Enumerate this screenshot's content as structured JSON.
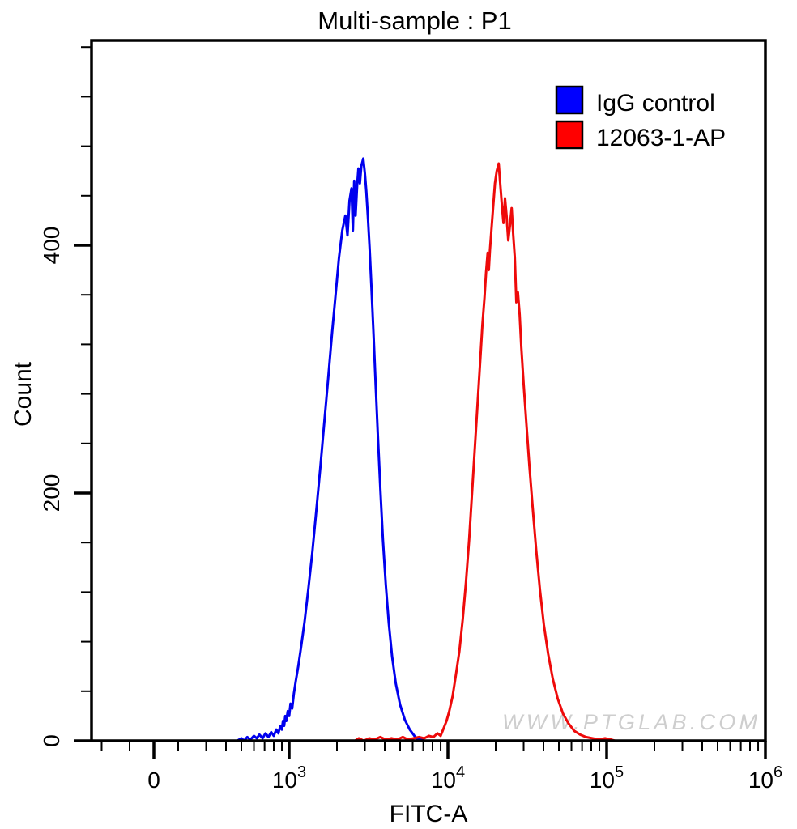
{
  "title": "Multi-sample : P1",
  "watermark": "WWW.PTGLAB.COM",
  "chart_data": {
    "type": "line",
    "subtype": "flow-cytometry-histogram",
    "title": "Multi-sample : P1",
    "xlabel": "FITC-A",
    "ylabel": "Count",
    "x_scale": "logicle",
    "x_major_ticks": [
      {
        "value": 0,
        "label": "0"
      },
      {
        "value": 1000,
        "base": "10",
        "exp": "3"
      },
      {
        "value": 10000,
        "base": "10",
        "exp": "4"
      },
      {
        "value": 100000,
        "base": "10",
        "exp": "5"
      },
      {
        "value": 1000000,
        "base": "10",
        "exp": "6"
      }
    ],
    "x_minor_tick_values": [
      -300,
      -200,
      200,
      300,
      400,
      500,
      600,
      700,
      800,
      900,
      2000,
      3000,
      4000,
      5000,
      6000,
      7000,
      8000,
      9000,
      20000,
      30000,
      40000,
      50000,
      60000,
      70000,
      80000,
      90000,
      200000,
      300000,
      400000,
      500000,
      600000,
      700000,
      800000,
      900000
    ],
    "y_major_ticks": [
      {
        "value": 0,
        "label": "0"
      },
      {
        "value": 200,
        "label": "200"
      },
      {
        "value": 400,
        "label": "400"
      }
    ],
    "y_minor_tick_values": [
      40,
      80,
      120,
      160,
      240,
      280,
      320,
      360,
      440,
      480,
      520,
      560
    ],
    "ylim": [
      0,
      565
    ],
    "grid": false,
    "legend": {
      "position": "top-right",
      "entries": [
        {
          "label": "IgG control",
          "color": "#0000ff"
        },
        {
          "label": "12063-1-AP",
          "color": "#ff0000"
        }
      ]
    },
    "series": [
      {
        "name": "IgG control",
        "color": "#0000ee",
        "points": [
          [
            470,
            0
          ],
          [
            500,
            2
          ],
          [
            520,
            0
          ],
          [
            545,
            3
          ],
          [
            570,
            1
          ],
          [
            600,
            4
          ],
          [
            625,
            2
          ],
          [
            650,
            5
          ],
          [
            680,
            2
          ],
          [
            710,
            6
          ],
          [
            740,
            3
          ],
          [
            770,
            7
          ],
          [
            800,
            4
          ],
          [
            830,
            9
          ],
          [
            855,
            6
          ],
          [
            880,
            12
          ],
          [
            900,
            9
          ],
          [
            915,
            16
          ],
          [
            930,
            12
          ],
          [
            945,
            20
          ],
          [
            960,
            16
          ],
          [
            980,
            24
          ],
          [
            1000,
            20
          ],
          [
            1020,
            30
          ],
          [
            1045,
            26
          ],
          [
            1070,
            38
          ],
          [
            1100,
            48
          ],
          [
            1140,
            60
          ],
          [
            1190,
            76
          ],
          [
            1250,
            96
          ],
          [
            1320,
            122
          ],
          [
            1400,
            152
          ],
          [
            1480,
            185
          ],
          [
            1570,
            220
          ],
          [
            1660,
            255
          ],
          [
            1760,
            292
          ],
          [
            1860,
            328
          ],
          [
            1960,
            360
          ],
          [
            2060,
            390
          ],
          [
            2160,
            412
          ],
          [
            2260,
            424
          ],
          [
            2330,
            408
          ],
          [
            2400,
            436
          ],
          [
            2470,
            446
          ],
          [
            2520,
            412
          ],
          [
            2570,
            452
          ],
          [
            2620,
            424
          ],
          [
            2680,
            448
          ],
          [
            2730,
            462
          ],
          [
            2790,
            450
          ],
          [
            2850,
            464
          ],
          [
            2930,
            470
          ],
          [
            3000,
            458
          ],
          [
            3060,
            444
          ],
          [
            3130,
            424
          ],
          [
            3210,
            398
          ],
          [
            3300,
            366
          ],
          [
            3400,
            328
          ],
          [
            3510,
            286
          ],
          [
            3630,
            244
          ],
          [
            3760,
            202
          ],
          [
            3900,
            162
          ],
          [
            4060,
            126
          ],
          [
            4240,
            95
          ],
          [
            4450,
            68
          ],
          [
            4700,
            46
          ],
          [
            5000,
            29
          ],
          [
            5350,
            17
          ],
          [
            5750,
            9
          ],
          [
            6150,
            4
          ],
          [
            6500,
            1
          ],
          [
            6800,
            2
          ],
          [
            7100,
            0
          ]
        ]
      },
      {
        "name": "12063-1-AP",
        "color": "#ee0a0a",
        "points": [
          [
            2600,
            0
          ],
          [
            2750,
            2
          ],
          [
            2950,
            0
          ],
          [
            3200,
            2
          ],
          [
            3450,
            1
          ],
          [
            3750,
            3
          ],
          [
            4050,
            1
          ],
          [
            4400,
            2
          ],
          [
            4800,
            1
          ],
          [
            5200,
            3
          ],
          [
            5600,
            1
          ],
          [
            6100,
            2
          ],
          [
            6600,
            3
          ],
          [
            7100,
            2
          ],
          [
            7600,
            4
          ],
          [
            8100,
            3
          ],
          [
            8600,
            6
          ],
          [
            9000,
            4
          ],
          [
            9400,
            10
          ],
          [
            9800,
            16
          ],
          [
            10200,
            24
          ],
          [
            10700,
            36
          ],
          [
            11200,
            52
          ],
          [
            11800,
            72
          ],
          [
            12400,
            98
          ],
          [
            13000,
            128
          ],
          [
            13600,
            162
          ],
          [
            14200,
            200
          ],
          [
            14800,
            238
          ],
          [
            15400,
            274
          ],
          [
            16000,
            308
          ],
          [
            16500,
            336
          ],
          [
            17000,
            358
          ],
          [
            17400,
            378
          ],
          [
            17800,
            394
          ],
          [
            18100,
            380
          ],
          [
            18400,
            396
          ],
          [
            18800,
            412
          ],
          [
            19300,
            432
          ],
          [
            19800,
            450
          ],
          [
            20300,
            460
          ],
          [
            20900,
            466
          ],
          [
            21400,
            448
          ],
          [
            21900,
            432
          ],
          [
            22400,
            418
          ],
          [
            22900,
            438
          ],
          [
            23400,
            424
          ],
          [
            24000,
            404
          ],
          [
            24600,
            416
          ],
          [
            25200,
            430
          ],
          [
            25800,
            408
          ],
          [
            26400,
            390
          ],
          [
            27000,
            354
          ],
          [
            27600,
            362
          ],
          [
            28300,
            344
          ],
          [
            29000,
            318
          ],
          [
            30000,
            288
          ],
          [
            31200,
            256
          ],
          [
            32600,
            222
          ],
          [
            34200,
            188
          ],
          [
            36000,
            154
          ],
          [
            38000,
            122
          ],
          [
            40200,
            94
          ],
          [
            42800,
            70
          ],
          [
            45800,
            50
          ],
          [
            49200,
            34
          ],
          [
            53000,
            22
          ],
          [
            57500,
            14
          ],
          [
            62500,
            8
          ],
          [
            68000,
            5
          ],
          [
            74000,
            3
          ],
          [
            81000,
            2
          ],
          [
            89000,
            1
          ],
          [
            98000,
            2
          ],
          [
            106000,
            1
          ],
          [
            113000,
            0
          ]
        ]
      }
    ]
  }
}
